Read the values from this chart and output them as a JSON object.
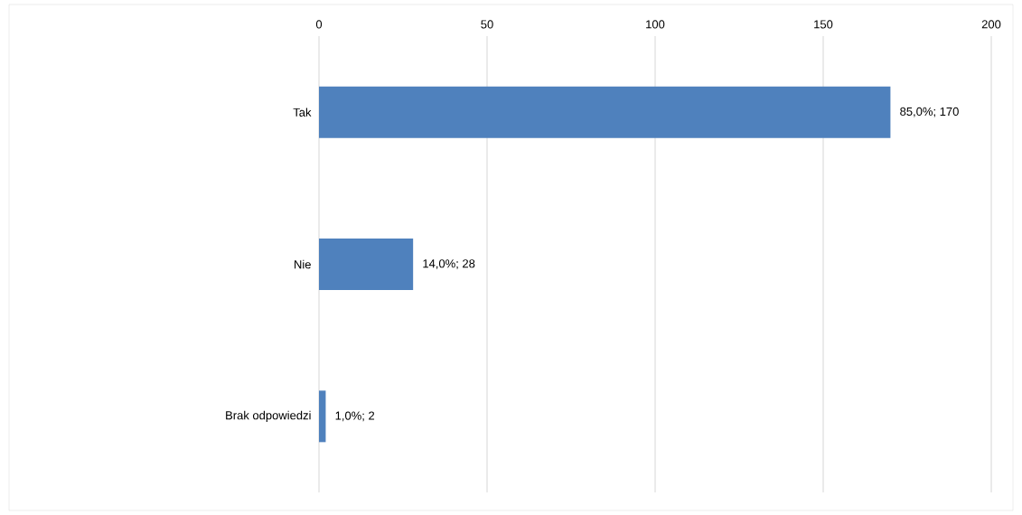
{
  "chart_data": {
    "type": "bar",
    "orientation": "horizontal",
    "categories": [
      "Tak",
      "Nie",
      "Brak odpowiedzi"
    ],
    "values": [
      170,
      28,
      2
    ],
    "value_labels": [
      "85,0%; 170",
      "14,0%; 28",
      "1,0%; 2"
    ],
    "color": "#4f81bd",
    "xlim": [
      0,
      200
    ],
    "xticks": [
      0,
      50,
      100,
      150,
      200
    ],
    "grid": "x"
  }
}
